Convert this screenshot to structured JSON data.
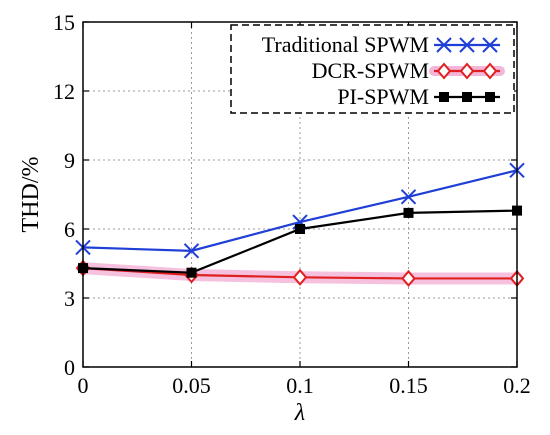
{
  "chart_data": {
    "type": "line",
    "title": "",
    "xlabel": "λ",
    "ylabel": "THD/%",
    "x": [
      0,
      0.05,
      0.1,
      0.15,
      0.2
    ],
    "x_tick_labels": [
      "0",
      "0.05",
      "0.1",
      "0.15",
      "0.2"
    ],
    "y_ticks": [
      0,
      3,
      6,
      9,
      12,
      15
    ],
    "y_tick_labels": [
      "0",
      "3",
      "6",
      "9",
      "12",
      "15"
    ],
    "xlim": [
      0,
      0.2
    ],
    "ylim": [
      0,
      15
    ],
    "grid": true,
    "legend_position": "top-right",
    "series": [
      {
        "name": "Traditional SPWM",
        "values": [
          5.2,
          5.05,
          6.3,
          7.4,
          8.55
        ],
        "color": "#1f3fd6",
        "marker": "x"
      },
      {
        "name": "DCR-SPWM",
        "values": [
          4.3,
          4.0,
          3.9,
          3.85,
          3.85
        ],
        "color": "#e02020",
        "marker": "diamond",
        "highlight": "#f4b6d8"
      },
      {
        "name": "PI-SPWM",
        "values": [
          4.3,
          4.1,
          6.0,
          6.7,
          6.8
        ],
        "color": "#000000",
        "marker": "square"
      }
    ]
  }
}
